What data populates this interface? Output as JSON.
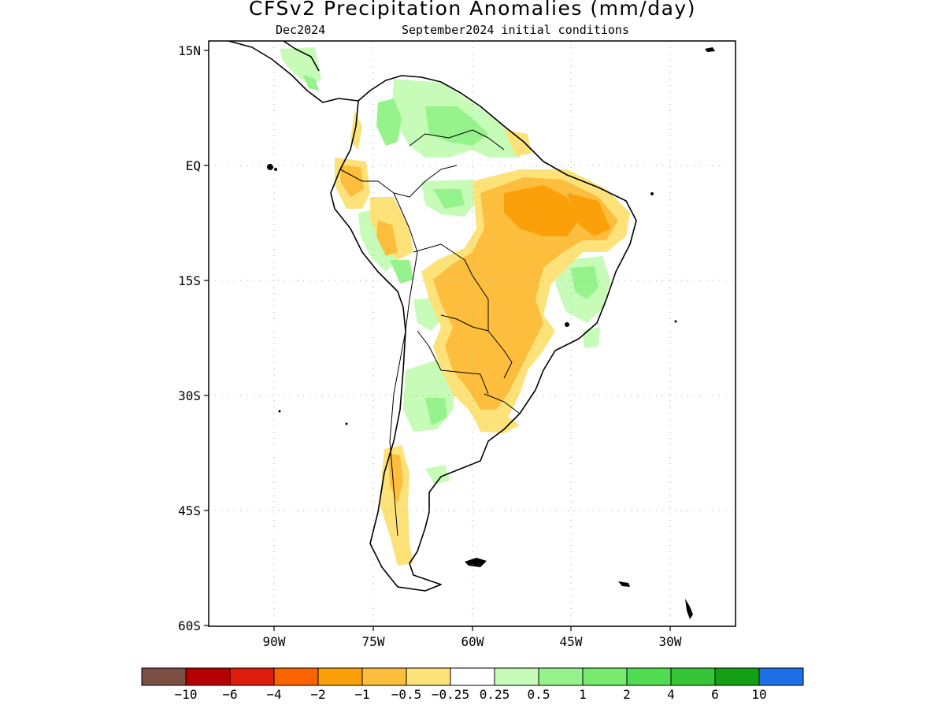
{
  "title": "CFSv2 Precipitation Anomalies (mm/day)",
  "subtitle_left": "Dec2024",
  "subtitle_right": "September2024 initial conditions",
  "map": {
    "lat_labels": [
      "15N",
      "EQ",
      "15S",
      "30S",
      "45S",
      "60S"
    ],
    "lon_labels": [
      "90W",
      "75W",
      "60W",
      "45W",
      "30W"
    ],
    "lon_range": [
      -100,
      -20
    ],
    "lat_range": [
      -60,
      15
    ],
    "gridlines": true,
    "colors": {
      "land_outline": "#000000",
      "grid": "#a0a0a0"
    },
    "anomaly_regions": [
      {
        "region": "northern Brazil / Amazon",
        "category": "-1 to -2"
      },
      {
        "region": "central-eastern Brazil",
        "category": "-0.5 to -1"
      },
      {
        "region": "southern Brazil / Paraguay / NE Argentina",
        "category": "-0.5 to -1"
      },
      {
        "region": "Peru Andes",
        "category": "-0.5 to -1"
      },
      {
        "region": "southern Chile",
        "category": "-0.5 to -1"
      },
      {
        "region": "Venezuela / Guyana",
        "category": "0.5 to 1"
      },
      {
        "region": "Colombia",
        "category": "0.5 to 1"
      },
      {
        "region": "northern Argentina",
        "category": "0.25 to 1"
      },
      {
        "region": "eastern Brazil coast",
        "category": "0.25 to 0.5"
      }
    ]
  },
  "colorbar": {
    "colors": [
      "#7b4e44",
      "#b40000",
      "#dc1c0c",
      "#fa6400",
      "#fca00a",
      "#fcbe3c",
      "#fde27a",
      "#ffffff",
      "#c6fcb8",
      "#96f28a",
      "#78eb6e",
      "#50dc50",
      "#36c536",
      "#14a014",
      "#1e6ee6"
    ],
    "labels": [
      "−10",
      "−6",
      "−4",
      "−2",
      "−1",
      "−0.5",
      "−0.25",
      "0.25",
      "0.5",
      "1",
      "2",
      "4",
      "6",
      "10"
    ]
  }
}
